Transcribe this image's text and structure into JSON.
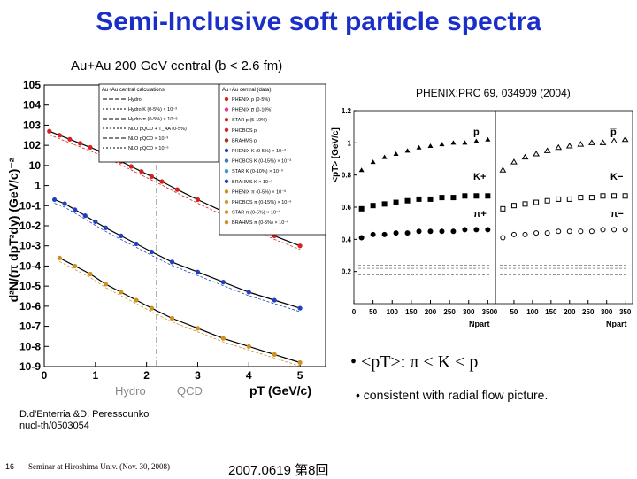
{
  "slide": {
    "title": "Semi-Inclusive soft particle spectra",
    "subtitle": "Au+Au 200 GeV central (b < 2.6 fm)",
    "reference": "PHENIX:PRC 69, 034909 (2004)",
    "bullet1": "• <pT>: π < K < p",
    "bullet2": "• consistent with radial flow picture.",
    "footnote1": "D.d'Enterria &D. Peressounko",
    "footnote2": "nucl-th/0503054",
    "slide_number": "16",
    "seminar": "Seminar at Hiroshima Univ. (Nov. 30, 2008)",
    "date": "2007.0619 第8回",
    "hydro_label": "Hydro",
    "qcd_label": "QCD"
  },
  "left_legend": {
    "header": "Au+Au central calculations:",
    "left_items": [
      "Hydro",
      "Hydro K (0-5%) × 10⁻³",
      "Hydro π (0-5%) × 10⁻⁶",
      "NLO pQCD + T_AA (0-5%)",
      "NLO pQCD × 10⁻³",
      "NLO pQCD × 10⁻⁶"
    ],
    "right_header": "Au+Au central (data):",
    "right_items": [
      "PHENIX p (0-5%)",
      "PHENIX p̅ (0-10%)",
      "STAR p (5-10%)",
      "PHOBOS p",
      "BRAHMS p",
      "PHENIX K (0-5%) × 10⁻³",
      "PHOBOS K (0-15%) × 10⁻³",
      "STAR K (0-10%) × 10⁻³",
      "BRAHMS K × 10⁻³",
      "PHENIX π (0-5%) × 10⁻⁶",
      "PHOBOS π (0-15%) × 10⁻⁶",
      "STAR π (0-5%) × 10⁻⁶",
      "BRAHMS π (0-5%) × 10⁻⁶"
    ]
  },
  "chart_data": [
    {
      "type": "scatter",
      "xlabel": "pT (GeV/c)",
      "ylabel": "d²N/(π dpT²dy) (GeV/c)⁻²",
      "log_y": true,
      "xlim": [
        0,
        5.5
      ],
      "ylim": [
        -9,
        5
      ],
      "x_ticks": [
        "0",
        "1",
        "2",
        "3",
        "4",
        "5"
      ],
      "y_ticks": [
        "10^5",
        "10^4",
        "10^3",
        "10^2",
        "10",
        "1",
        "10^-1",
        "10^-2",
        "10^-3",
        "10^-4",
        "10^-5",
        "10^-6",
        "10^-7",
        "10^-8",
        "10^-9"
      ],
      "series": [
        {
          "color": "#d62020",
          "x": [
            0.1,
            0.3,
            0.5,
            0.7,
            0.9,
            1.1,
            1.3,
            1.5,
            1.7,
            1.9,
            2.1,
            2.3,
            2.6,
            3.0,
            3.5,
            4.0,
            4.5,
            5.0
          ],
          "log10y": [
            2.7,
            2.5,
            2.3,
            2.1,
            1.9,
            1.7,
            1.45,
            1.2,
            0.95,
            0.7,
            0.45,
            0.2,
            -0.2,
            -0.7,
            -1.3,
            -1.9,
            -2.5,
            -3.0
          ]
        },
        {
          "color": "#2040c0",
          "x": [
            0.2,
            0.4,
            0.6,
            0.8,
            1.0,
            1.2,
            1.5,
            1.8,
            2.1,
            2.5,
            3.0,
            3.5,
            4.0,
            4.5,
            5.0
          ],
          "log10y": [
            -0.7,
            -0.9,
            -1.2,
            -1.5,
            -1.8,
            -2.1,
            -2.5,
            -2.9,
            -3.3,
            -3.8,
            -4.3,
            -4.8,
            -5.3,
            -5.7,
            -6.1
          ]
        },
        {
          "color": "#d09020",
          "x": [
            0.3,
            0.6,
            0.9,
            1.2,
            1.5,
            1.8,
            2.1,
            2.5,
            3.0,
            3.5,
            4.0,
            4.5,
            5.0
          ],
          "log10y": [
            -3.6,
            -4.0,
            -4.4,
            -4.9,
            -5.3,
            -5.7,
            -6.1,
            -6.6,
            -7.1,
            -7.6,
            -8.0,
            -8.4,
            -8.8
          ]
        }
      ]
    },
    {
      "type": "scatter",
      "xlabel": "Npart",
      "ylabel": "<pT> [GeV/c]",
      "panels": [
        "left",
        "right"
      ],
      "x_ticks": [
        "0",
        "50",
        "100",
        "150",
        "200",
        "250",
        "300",
        "350"
      ],
      "y_ticks": [
        "0.2",
        "0.4",
        "0.6",
        "0.8",
        "1",
        "1.2"
      ],
      "ylim": [
        0,
        1.2
      ],
      "labels_left": [
        "p",
        "K+",
        "π+"
      ],
      "labels_right": [
        "p̅",
        "K−",
        "π−"
      ],
      "series": [
        {
          "name": "p",
          "x": [
            20,
            50,
            80,
            110,
            140,
            170,
            200,
            230,
            260,
            290,
            320,
            350
          ],
          "y": [
            0.83,
            0.88,
            0.91,
            0.93,
            0.95,
            0.97,
            0.98,
            0.99,
            1.0,
            1.0,
            1.01,
            1.02
          ]
        },
        {
          "name": "K",
          "x": [
            20,
            50,
            80,
            110,
            140,
            170,
            200,
            230,
            260,
            290,
            320,
            350
          ],
          "y": [
            0.59,
            0.61,
            0.62,
            0.63,
            0.64,
            0.65,
            0.65,
            0.66,
            0.66,
            0.67,
            0.67,
            0.67
          ]
        },
        {
          "name": "pi",
          "x": [
            20,
            50,
            80,
            110,
            140,
            170,
            200,
            230,
            260,
            290,
            320,
            350
          ],
          "y": [
            0.41,
            0.43,
            0.43,
            0.44,
            0.44,
            0.45,
            0.45,
            0.45,
            0.45,
            0.46,
            0.46,
            0.46
          ]
        }
      ]
    }
  ]
}
